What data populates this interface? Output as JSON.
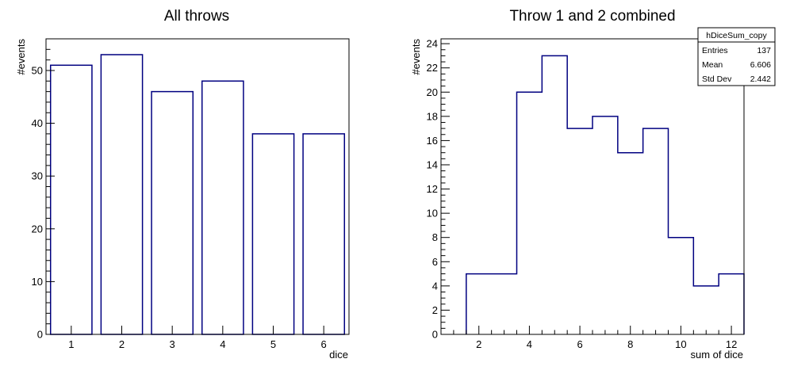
{
  "chart_data": [
    {
      "type": "bar",
      "title": "All throws",
      "xlabel": "dice",
      "ylabel": "#events",
      "categories": [
        "1",
        "2",
        "3",
        "4",
        "5",
        "6"
      ],
      "values": [
        51,
        53,
        46,
        48,
        38,
        38
      ],
      "ylim": [
        0,
        56
      ],
      "y_ticks": [
        "0",
        "10",
        "20",
        "30",
        "40",
        "50"
      ],
      "grid": false,
      "line_color": "#000080"
    },
    {
      "type": "histogram",
      "title": "Throw 1 and 2 combined",
      "xlabel": "sum of dice",
      "ylabel": "#events",
      "bin_edges": [
        1.5,
        2.5,
        3.5,
        4.5,
        5.5,
        6.5,
        7.5,
        8.5,
        9.5,
        10.5,
        11.5,
        12.5
      ],
      "values": [
        5,
        5,
        20,
        23,
        17,
        18,
        15,
        17,
        8,
        4,
        5
      ],
      "xlim": [
        0.5,
        12.5
      ],
      "ylim": [
        0,
        24.4
      ],
      "x_ticks": [
        "2",
        "4",
        "6",
        "8",
        "10",
        "12"
      ],
      "y_ticks": [
        "0",
        "2",
        "4",
        "6",
        "8",
        "10",
        "12",
        "14",
        "16",
        "18",
        "20",
        "22",
        "24"
      ],
      "grid": false,
      "line_color": "#000080",
      "stats": {
        "name": "hDiceSum_copy",
        "rows": [
          {
            "label": "Entries",
            "value": "137"
          },
          {
            "label": "Mean",
            "value": "6.606"
          },
          {
            "label": "Std Dev",
            "value": "2.442"
          }
        ]
      }
    }
  ]
}
